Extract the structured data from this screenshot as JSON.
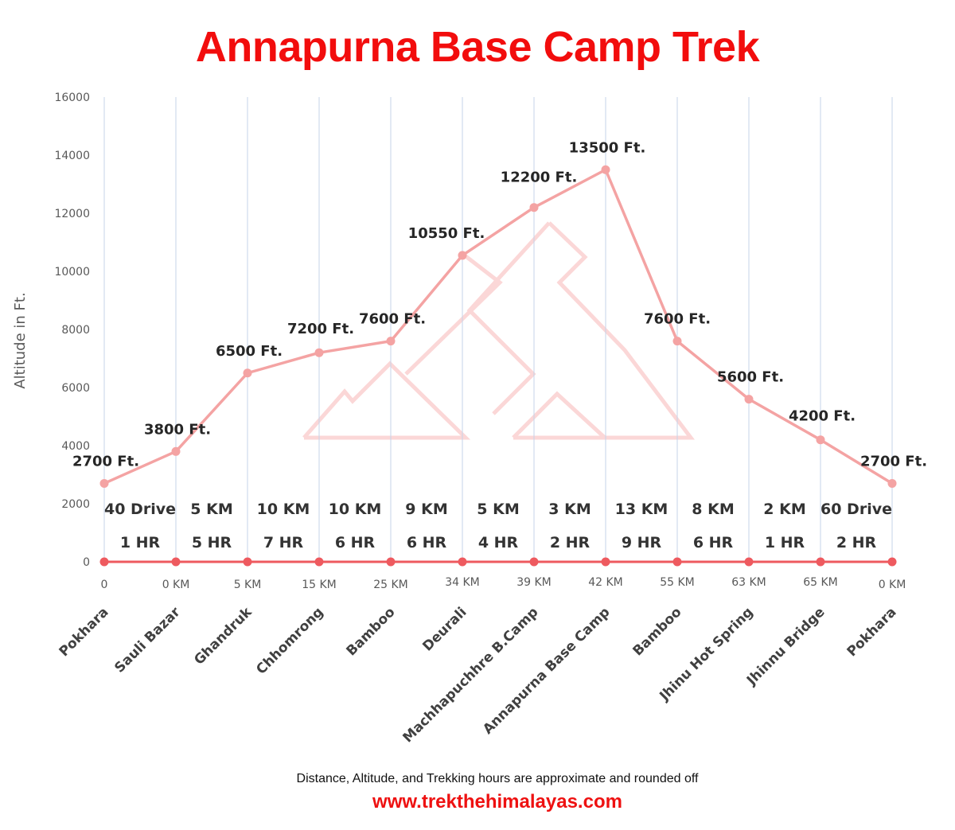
{
  "title": "Annapurna Base Camp Trek",
  "footer": {
    "note": "Distance, Altitude,  and Trekking hours are approximate and rounded  off",
    "website": "www.trekthehimalayas.com"
  },
  "colors": {
    "title": "#f20d0d",
    "altitude_line": "#f4a3a3",
    "baseline": "#ee5a5f",
    "gridline": "#c5d3e8",
    "website": "#ee1111"
  },
  "chart_data": {
    "type": "line",
    "title": "Annapurna Base Camp Trek",
    "xlabel": "",
    "ylabel": "Altitude in Ft.",
    "ylim": [
      0,
      16000
    ],
    "yticks": [
      0,
      2000,
      4000,
      6000,
      8000,
      10000,
      12000,
      14000,
      16000
    ],
    "grid": "vertical lines at each category",
    "categories": [
      "Pokhara",
      "Sauli Bazar",
      "Ghandruk",
      "Chhomrong",
      "Bamboo",
      "Deurali",
      "Machhapuchhre B.Camp",
      "Annapurna Base Camp",
      "Bamboo",
      "Jhinu Hot Spring",
      "Jhinnu Bridge",
      "Pokhara"
    ],
    "series": [
      {
        "name": "Altitude",
        "values": [
          2700,
          3800,
          6500,
          7200,
          7600,
          10550,
          12200,
          13500,
          7600,
          5600,
          4200,
          2700
        ],
        "data_labels": [
          "2700 Ft.",
          "3800 Ft.",
          "6500 Ft.",
          "7200 Ft.",
          "7600 Ft.",
          "10550 Ft.",
          "12200 Ft.",
          "13500 Ft.",
          "7600 Ft.",
          "5600 Ft.",
          "4200 Ft.",
          "2700 Ft."
        ]
      },
      {
        "name": "Baseline",
        "values": [
          0,
          0,
          0,
          0,
          0,
          0,
          0,
          0,
          0,
          0,
          0,
          0
        ],
        "data_labels": [
          "0",
          "0 KM",
          "5 KM",
          "15 KM",
          "25 KM",
          "34 KM",
          "39 KM",
          "42 KM",
          "55 KM",
          "63 KM",
          "65 KM",
          "0 KM"
        ]
      }
    ],
    "segments": [
      {
        "distance": "40  Drive",
        "hours": "1 HR"
      },
      {
        "distance": "5 KM",
        "hours": "5 HR"
      },
      {
        "distance": "10 KM",
        "hours": "7 HR"
      },
      {
        "distance": "10 KM",
        "hours": "6 HR"
      },
      {
        "distance": "9 KM",
        "hours": "6 HR"
      },
      {
        "distance": "5 KM",
        "hours": "4 HR"
      },
      {
        "distance": "3 KM",
        "hours": "2 HR"
      },
      {
        "distance": "13 KM",
        "hours": "9 HR"
      },
      {
        "distance": "8 KM",
        "hours": "6 HR"
      },
      {
        "distance": "2 KM",
        "hours": "1 HR"
      },
      {
        "distance": "60  Drive",
        "hours": "2 HR"
      }
    ],
    "legend": "none"
  }
}
